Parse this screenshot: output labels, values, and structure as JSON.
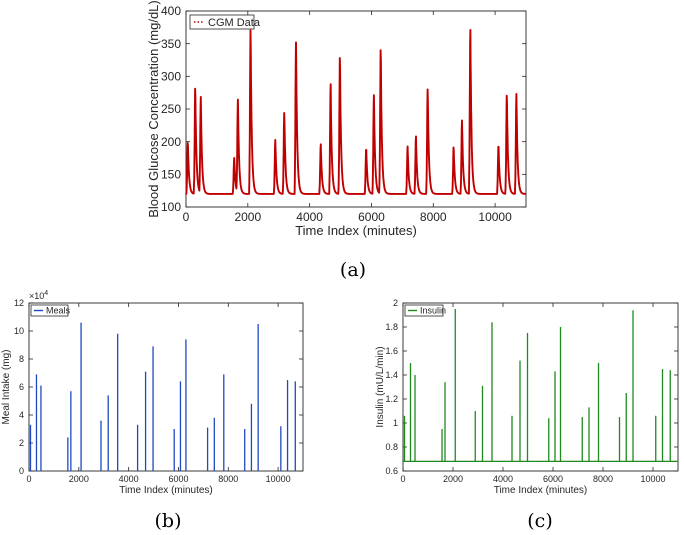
{
  "panel_labels": [
    "(a)",
    "(b)",
    "(c)"
  ],
  "chart_data": [
    {
      "type": "line",
      "xlabel": "Time Index (minutes)",
      "ylabel": "Blood Glucose Concentration (mg/dL)",
      "xlim": [
        0,
        11000
      ],
      "ylim": [
        100,
        400
      ],
      "xticks": [
        0,
        2000,
        4000,
        6000,
        8000,
        10000
      ],
      "yticks": [
        100,
        150,
        200,
        250,
        300,
        350,
        400
      ],
      "xtick_labels": [
        "0",
        "2000",
        "4000",
        "6000",
        "8000",
        "10000"
      ],
      "ytick_labels": [
        "100",
        "150",
        "200",
        "250",
        "300",
        "350",
        "400"
      ],
      "grid": false,
      "legend_position": "top-left",
      "baseline": 120,
      "series": [
        {
          "name": "CGM Data",
          "color": "#c00000",
          "peaks": [
            {
              "x": 60,
              "y": 200
            },
            {
              "x": 300,
              "y": 285
            },
            {
              "x": 480,
              "y": 267
            },
            {
              "x": 1560,
              "y": 175
            },
            {
              "x": 1680,
              "y": 262
            },
            {
              "x": 2090,
              "y": 372
            },
            {
              "x": 2890,
              "y": 203
            },
            {
              "x": 3180,
              "y": 247
            },
            {
              "x": 3560,
              "y": 352
            },
            {
              "x": 4360,
              "y": 196
            },
            {
              "x": 4680,
              "y": 288
            },
            {
              "x": 4980,
              "y": 333
            },
            {
              "x": 5830,
              "y": 191
            },
            {
              "x": 6080,
              "y": 271
            },
            {
              "x": 6300,
              "y": 345
            },
            {
              "x": 7170,
              "y": 193
            },
            {
              "x": 7440,
              "y": 208
            },
            {
              "x": 7820,
              "y": 284
            },
            {
              "x": 8660,
              "y": 193
            },
            {
              "x": 8930,
              "y": 233
            },
            {
              "x": 9200,
              "y": 371
            },
            {
              "x": 10110,
              "y": 196
            },
            {
              "x": 10380,
              "y": 274
            },
            {
              "x": 10690,
              "y": 274
            }
          ]
        }
      ]
    },
    {
      "type": "bar",
      "xlabel": "Time Index (minutes)",
      "ylabel": "Meal Intake (mg)",
      "xlim": [
        0,
        11000
      ],
      "ylim": [
        0,
        12
      ],
      "y_multiplier_label": "×10",
      "y_multiplier_exponent": "4",
      "xticks": [
        0,
        2000,
        4000,
        6000,
        8000,
        10000
      ],
      "yticks": [
        0,
        2,
        4,
        6,
        8,
        10,
        12
      ],
      "xtick_labels": [
        "0",
        "2000",
        "4000",
        "6000",
        "8000",
        "10000"
      ],
      "ytick_labels": [
        "0",
        "2",
        "4",
        "6",
        "8",
        "10",
        "12"
      ],
      "grid": false,
      "legend_position": "top-left",
      "series": [
        {
          "name": "Meals",
          "color": "#1f49c2",
          "x": [
            60,
            300,
            480,
            1560,
            1680,
            2090,
            2890,
            3180,
            3560,
            4360,
            4680,
            4980,
            5830,
            6080,
            6300,
            7170,
            7440,
            7820,
            8660,
            8930,
            9200,
            10110,
            10380,
            10690
          ],
          "values": [
            3.3,
            6.9,
            6.1,
            2.4,
            5.7,
            10.6,
            3.6,
            5.4,
            9.8,
            3.3,
            7.1,
            8.9,
            3.0,
            6.4,
            9.4,
            3.1,
            3.8,
            6.9,
            3.0,
            4.8,
            10.5,
            3.2,
            6.5,
            6.4
          ]
        }
      ]
    },
    {
      "type": "bar",
      "xlabel": "Time Index (minutes)",
      "ylabel": "Insulin (mU/L/min)",
      "xlim": [
        0,
        11000
      ],
      "ylim": [
        0.6,
        2.0
      ],
      "baseline": 0.68,
      "xticks": [
        0,
        2000,
        4000,
        6000,
        8000,
        10000
      ],
      "yticks": [
        0.6,
        0.8,
        1.0,
        1.2,
        1.4,
        1.6,
        1.8,
        2.0
      ],
      "xtick_labels": [
        "0",
        "2000",
        "4000",
        "6000",
        "8000",
        "10000"
      ],
      "ytick_labels": [
        "0.6",
        "0.8",
        "1",
        "1.2",
        "1.4",
        "1.6",
        "1.8",
        "2"
      ],
      "grid": false,
      "legend_position": "top-left",
      "series": [
        {
          "name": "Insulin",
          "color": "#1e8a1e",
          "x": [
            60,
            300,
            480,
            1560,
            1680,
            2090,
            2890,
            3180,
            3560,
            4360,
            4680,
            4980,
            5830,
            6080,
            6300,
            7170,
            7440,
            7820,
            8660,
            8930,
            9200,
            10110,
            10380,
            10690
          ],
          "values": [
            1.06,
            1.5,
            1.4,
            0.95,
            1.34,
            1.95,
            1.1,
            1.31,
            1.84,
            1.06,
            1.52,
            1.75,
            1.04,
            1.43,
            1.8,
            1.05,
            1.13,
            1.5,
            1.05,
            1.25,
            1.94,
            1.06,
            1.45,
            1.44
          ]
        }
      ]
    }
  ]
}
